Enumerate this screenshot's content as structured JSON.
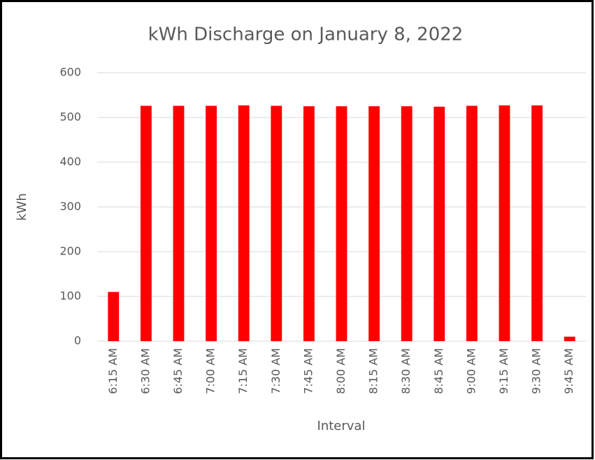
{
  "chart_data": {
    "type": "bar",
    "title": "kWh Discharge on January 8, 2022",
    "x_label": "Interval",
    "y_label": "kWh",
    "categories": [
      "6:15 AM",
      "6:30 AM",
      "6:45 AM",
      "7:00 AM",
      "7:15 AM",
      "7:30 AM",
      "7:45 AM",
      "8:00 AM",
      "8:15 AM",
      "8:30 AM",
      "8:45 AM",
      "9:00 AM",
      "9:15 AM",
      "9:30 AM",
      "9:45 AM"
    ],
    "values": [
      110,
      526,
      526,
      526,
      527,
      526,
      525,
      525,
      525,
      525,
      524,
      526,
      527,
      527,
      10
    ],
    "color": "#ff0000",
    "ylim": [
      0,
      600
    ],
    "yticks": [
      0,
      100,
      200,
      300,
      400,
      500,
      600
    ],
    "grid": true
  }
}
